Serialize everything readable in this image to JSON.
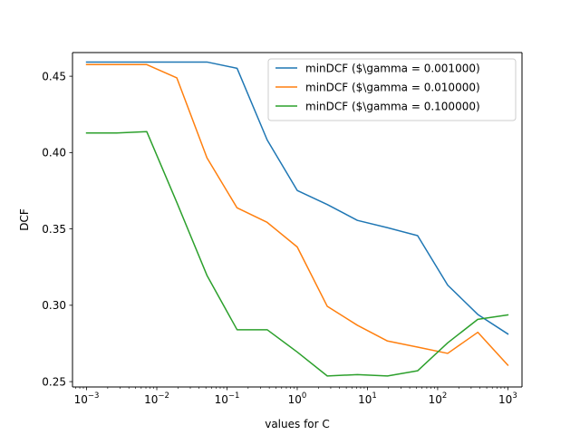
{
  "chart_data": {
    "type": "line",
    "title": "",
    "xlabel": "values for C",
    "ylabel": "DCF",
    "xscale": "log",
    "xlim": [
      0.00063,
      1590
    ],
    "ylim": [
      0.2465,
      0.4655
    ],
    "grid": false,
    "legend_position": "top-right",
    "x_ticks": [
      {
        "value": 0.001,
        "base": "10",
        "exp": "−3"
      },
      {
        "value": 0.01,
        "base": "10",
        "exp": "−2"
      },
      {
        "value": 0.1,
        "base": "10",
        "exp": "−1"
      },
      {
        "value": 1,
        "base": "10",
        "exp": "0"
      },
      {
        "value": 10,
        "base": "10",
        "exp": "1"
      },
      {
        "value": 100,
        "base": "10",
        "exp": "2"
      },
      {
        "value": 1000,
        "base": "10",
        "exp": "3"
      }
    ],
    "y_ticks": [
      {
        "value": 0.25,
        "label": "0.25"
      },
      {
        "value": 0.3,
        "label": "0.30"
      },
      {
        "value": 0.35,
        "label": "0.35"
      },
      {
        "value": 0.4,
        "label": "0.40"
      },
      {
        "value": 0.45,
        "label": "0.45"
      }
    ],
    "series": [
      {
        "name": "minDCF ($\\gamma = 0.001000)",
        "color": "#1f77b4",
        "x": [
          0.001,
          0.00268,
          0.0072,
          0.0193,
          0.0518,
          0.139,
          0.373,
          1.0,
          2.68,
          7.2,
          19.3,
          51.8,
          139,
          373,
          1000
        ],
        "y": [
          0.4593,
          0.4593,
          0.4593,
          0.4593,
          0.4593,
          0.4552,
          0.4083,
          0.3752,
          0.366,
          0.3556,
          0.3508,
          0.3456,
          0.3132,
          0.294,
          0.2812
        ]
      },
      {
        "name": "minDCF ($\\gamma = 0.010000)",
        "color": "#ff7f0e",
        "x": [
          0.001,
          0.00268,
          0.0072,
          0.0193,
          0.0518,
          0.139,
          0.373,
          1.0,
          2.68,
          7.2,
          19.3,
          51.8,
          139,
          373,
          1000
        ],
        "y": [
          0.4576,
          0.4576,
          0.4576,
          0.4489,
          0.3966,
          0.3638,
          0.3543,
          0.3382,
          0.2993,
          0.2869,
          0.2766,
          0.2726,
          0.2685,
          0.2823,
          0.2608
        ]
      },
      {
        "name": "minDCF ($\\gamma = 0.100000)",
        "color": "#2ca02c",
        "x": [
          0.001,
          0.00268,
          0.0072,
          0.0193,
          0.0518,
          0.139,
          0.373,
          1.0,
          2.68,
          7.2,
          19.3,
          51.8,
          139,
          373,
          1000
        ],
        "y": [
          0.4128,
          0.4128,
          0.4137,
          0.3673,
          0.3196,
          0.284,
          0.284,
          0.2694,
          0.2537,
          0.2546,
          0.2537,
          0.2571,
          0.2754,
          0.2908,
          0.2937
        ]
      }
    ]
  }
}
